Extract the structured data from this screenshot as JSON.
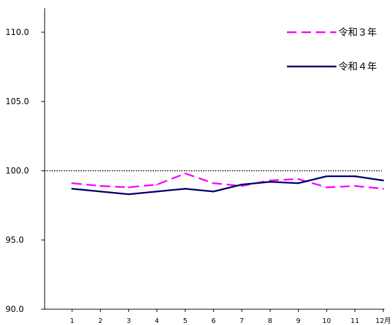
{
  "chart_data": {
    "type": "line",
    "x": [
      "1",
      "2",
      "3",
      "4",
      "5",
      "6",
      "7",
      "8",
      "9",
      "10",
      "11",
      "12月"
    ],
    "series": [
      {
        "name": "令和３年",
        "color": "#ff00ff",
        "dash": "dashed",
        "values": [
          99.1,
          98.9,
          98.8,
          99.0,
          99.8,
          99.1,
          98.9,
          99.3,
          99.4,
          98.8,
          98.9,
          98.7
        ]
      },
      {
        "name": "令和４年",
        "color": "#000066",
        "dash": "solid",
        "values": [
          98.7,
          98.5,
          98.3,
          98.5,
          98.7,
          98.5,
          99.0,
          99.2,
          99.1,
          99.6,
          99.6,
          99.3
        ]
      }
    ],
    "y_ticks": [
      "90.0",
      "95.0",
      "100.0",
      "105.0",
      "110.0"
    ],
    "ylim": [
      90,
      111.8
    ],
    "reference_line": {
      "value": 100,
      "style": "dotted",
      "color": "#000000"
    },
    "grid": false,
    "legend_position": "top-right",
    "title": "",
    "xlabel": "",
    "ylabel": ""
  }
}
